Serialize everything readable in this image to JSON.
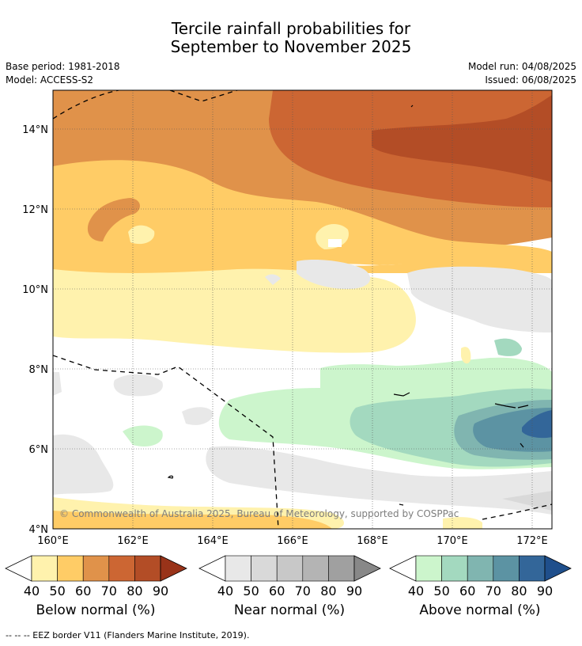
{
  "title_line1": "Tercile rainfall probabilities for",
  "title_line2": "September to November 2025",
  "base_period": "Base period: 1981-2018",
  "model": "Model: ACCESS-S2",
  "model_run": "Model run: 04/08/2025",
  "issued": "Issued: 06/08/2025",
  "copyright": "© Commonwealth of Australia 2025, Bureau of Meteorology, supported by COSPPac",
  "lat_labels": [
    "14°N",
    "12°N",
    "10°N",
    "8°N",
    "6°N",
    "4°N"
  ],
  "lon_labels": [
    "160°E",
    "162°E",
    "164°E",
    "166°E",
    "168°E",
    "170°E",
    "172°E"
  ],
  "colorbars": [
    {
      "title": "Below normal (%)",
      "ticks": [
        "40",
        "50",
        "60",
        "70",
        "80",
        "90"
      ],
      "colors": [
        "#fff2ad",
        "#ffcc66",
        "#e0924a",
        "#cc6633",
        "#b34d26",
        "#993319"
      ]
    },
    {
      "title": "Near normal (%)",
      "ticks": [
        "40",
        "50",
        "60",
        "70",
        "80",
        "90"
      ],
      "colors": [
        "#e8e8e8",
        "#d9d9d9",
        "#c8c8c8",
        "#b4b4b4",
        "#a0a0a0",
        "#888888"
      ]
    },
    {
      "title": "Above normal (%)",
      "ticks": [
        "40",
        "50",
        "60",
        "70",
        "80",
        "90"
      ],
      "colors": [
        "#ccf5cc",
        "#a3d9bf",
        "#80b5b0",
        "#5c93a3",
        "#336699",
        "#1f4f8c"
      ]
    }
  ],
  "footnote": "--  --  -- EEZ border V11 (Flanders Marine Institute, 2019)."
}
